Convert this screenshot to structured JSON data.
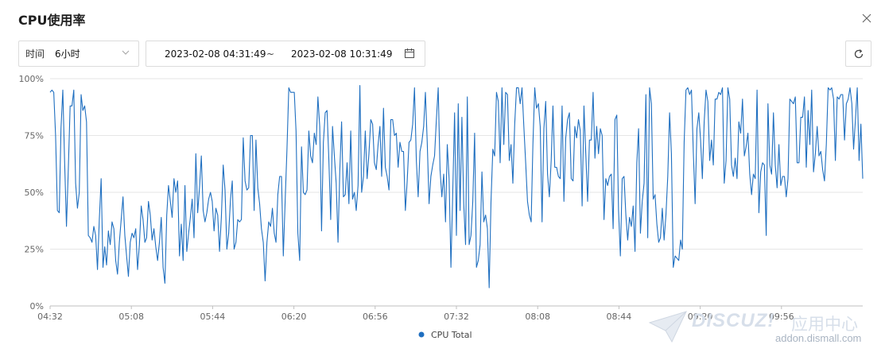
{
  "dialog": {
    "title": "CPU使用率"
  },
  "toolbar": {
    "time_label": "时间",
    "time_value": "6小时",
    "range_start": "2023-02-08 04:31:49",
    "range_separator": "~",
    "range_end": "2023-02-08 10:31:49"
  },
  "icons": {
    "close": "close-icon",
    "dropdown": "chevron-down-icon",
    "calendar": "calendar-icon",
    "refresh": "refresh-icon"
  },
  "watermark": {
    "brand": "DISCUZ!",
    "cn": "应用中心",
    "site": "addon.dismall.com"
  },
  "chart_data": {
    "type": "line",
    "title": "",
    "xlabel": "",
    "ylabel": "",
    "ylim": [
      0,
      100
    ],
    "y_ticks": [
      "0%",
      "25%",
      "50%",
      "75%",
      "100%"
    ],
    "x_ticks": [
      "04:32",
      "05:08",
      "05:44",
      "06:20",
      "06:56",
      "07:32",
      "08:08",
      "08:44",
      "09:20",
      "09:56"
    ],
    "x_range": [
      "04:32",
      "10:32"
    ],
    "grid": true,
    "legend_position": "bottom-center",
    "series": [
      {
        "name": "CPU Total",
        "color": "#1f6fc0",
        "values": [
          94,
          95,
          94,
          75,
          42,
          41,
          78,
          95,
          63,
          35,
          60,
          88,
          88,
          95,
          54,
          43,
          50,
          93,
          86,
          88,
          81,
          31,
          30,
          28,
          35,
          31,
          16,
          38,
          56,
          17,
          26,
          18,
          33,
          27,
          37,
          34,
          20,
          14,
          28,
          38,
          48,
          31,
          22,
          13,
          28,
          32,
          30,
          34,
          16,
          27,
          44,
          38,
          28,
          30,
          46,
          40,
          29,
          34,
          26,
          20,
          28,
          39,
          17,
          10,
          40,
          53,
          46,
          39,
          56,
          50,
          55,
          22,
          36,
          20,
          53,
          24,
          32,
          39,
          47,
          30,
          67,
          41,
          52,
          66,
          42,
          37,
          41,
          47,
          50,
          46,
          33,
          43,
          40,
          24,
          39,
          62,
          51,
          25,
          32,
          47,
          55,
          25,
          28,
          38,
          37,
          38,
          74,
          55,
          51,
          52,
          75,
          75,
          42,
          73,
          52,
          45,
          34,
          28,
          11,
          28,
          37,
          35,
          43,
          32,
          28,
          49,
          57,
          57,
          22,
          46,
          69,
          96,
          94,
          94,
          94,
          77,
          32,
          20,
          70,
          50,
          49,
          51,
          77,
          66,
          63,
          76,
          71,
          92,
          79,
          33,
          72,
          85,
          86,
          64,
          38,
          79,
          66,
          54,
          28,
          59,
          81,
          48,
          49,
          63,
          45,
          77,
          47,
          50,
          42,
          53,
          97,
          50,
          57,
          77,
          56,
          67,
          82,
          80,
          63,
          60,
          71,
          79,
          57,
          87,
          61,
          57,
          51,
          82,
          82,
          75,
          76,
          61,
          72,
          68,
          68,
          42,
          55,
          72,
          73,
          80,
          96,
          64,
          48,
          68,
          72,
          79,
          94,
          72,
          45,
          57,
          62,
          66,
          82,
          96,
          60,
          48,
          58,
          37,
          71,
          56,
          17,
          50,
          85,
          31,
          89,
          42,
          83,
          45,
          27,
          92,
          27,
          31,
          46,
          76,
          17,
          20,
          27,
          59,
          37,
          40,
          34,
          8,
          46,
          69,
          66,
          94,
          90,
          63,
          96,
          71,
          94,
          93,
          64,
          71,
          54,
          80,
          96,
          96,
          89,
          96,
          79,
          63,
          46,
          40,
          37,
          71,
          96,
          87,
          89,
          79,
          37,
          78,
          90,
          58,
          48,
          64,
          88,
          61,
          61,
          57,
          56,
          88,
          46,
          74,
          82,
          85,
          56,
          55,
          79,
          74,
          82,
          77,
          44,
          88,
          67,
          46,
          73,
          73,
          94,
          65,
          79,
          67,
          78,
          75,
          38,
          56,
          53,
          57,
          58,
          34,
          82,
          84,
          42,
          22,
          56,
          57,
          40,
          29,
          39,
          35,
          44,
          24,
          63,
          78,
          32,
          46,
          54,
          93,
          30,
          96,
          89,
          47,
          49,
          36,
          28,
          30,
          43,
          29,
          40,
          57,
          85,
          67,
          17,
          22,
          21,
          20,
          29,
          25,
          72,
          95,
          96,
          93,
          95,
          68,
          45,
          78,
          85,
          73,
          56,
          81,
          95,
          90,
          64,
          73,
          62,
          91,
          91,
          94,
          93,
          96,
          54,
          64,
          96,
          91,
          62,
          57,
          65,
          56,
          81,
          76,
          91,
          66,
          70,
          76,
          58,
          49,
          58,
          56,
          95,
          41,
          59,
          63,
          62,
          31,
          89,
          62,
          58,
          85,
          62,
          52,
          71,
          53,
          57,
          57,
          48,
          56,
          91,
          90,
          89,
          92,
          63,
          63,
          83,
          83,
          92,
          61,
          86,
          71,
          95,
          59,
          67,
          79,
          66,
          68,
          60,
          55,
          71,
          96,
          95,
          96,
          91,
          64,
          92,
          91,
          93,
          93,
          73,
          89,
          91,
          96,
          89,
          69,
          82,
          96,
          64,
          80,
          56
        ]
      }
    ]
  }
}
